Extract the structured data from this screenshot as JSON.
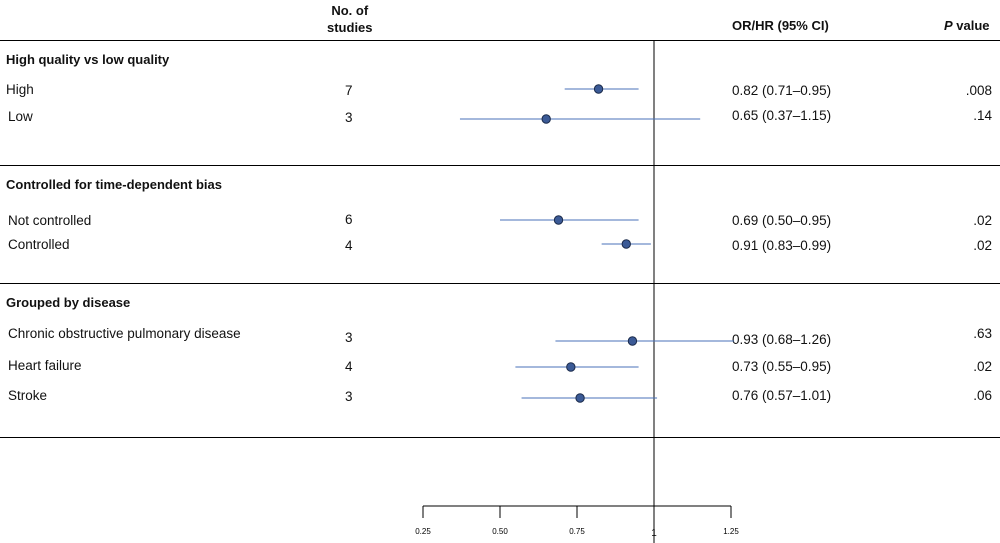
{
  "chart_data": {
    "type": "forest",
    "headers": {
      "studies_line1": "No. of",
      "studies_line2": "studies",
      "estimate": "OR/HR (95% CI)",
      "p_italic": "P",
      "p_rest": " value"
    },
    "x_axis": {
      "ticks": [
        {
          "value": 0.25,
          "label": "0.25"
        },
        {
          "value": 0.5,
          "label": "0.50"
        },
        {
          "value": 0.75,
          "label": "0.75"
        },
        {
          "value": 1.0,
          "label": "1"
        },
        {
          "value": 1.25,
          "label": "1.25"
        }
      ],
      "reference_value": 1.0,
      "range": [
        0.25,
        1.25
      ]
    },
    "groups": [
      {
        "title": "High quality vs low quality",
        "rows": [
          {
            "label": "High",
            "studies": "7",
            "estimate": 0.82,
            "lower": 0.71,
            "upper": 0.95,
            "ci_text": "0.82 (0.71–0.95)",
            "p": ".008"
          },
          {
            "label": "Low",
            "studies": "3",
            "estimate": 0.65,
            "lower": 0.37,
            "upper": 1.15,
            "ci_text": "0.65 (0.37–1.15)",
            "p": ".14"
          }
        ]
      },
      {
        "title": "Controlled for time-dependent bias",
        "rows": [
          {
            "label": "Not controlled",
            "studies": "6",
            "estimate": 0.69,
            "lower": 0.5,
            "upper": 0.95,
            "ci_text": "0.69 (0.50–0.95)",
            "p": ".02"
          },
          {
            "label": "Controlled",
            "studies": "4",
            "estimate": 0.91,
            "lower": 0.83,
            "upper": 0.99,
            "ci_text": "0.91 (0.83–0.99)",
            "p": ".02"
          }
        ]
      },
      {
        "title": "Grouped by disease",
        "rows": [
          {
            "label": "Chronic obstructive pulmonary disease",
            "studies": "3",
            "estimate": 0.93,
            "lower": 0.68,
            "upper": 1.26,
            "ci_text": "0.93 (0.68–1.26)",
            "p": ".63"
          },
          {
            "label": "Heart failure",
            "studies": "4",
            "estimate": 0.73,
            "lower": 0.55,
            "upper": 0.95,
            "ci_text": "0.73 (0.55–0.95)",
            "p": ".02"
          },
          {
            "label": "Stroke",
            "studies": "3",
            "estimate": 0.76,
            "lower": 0.57,
            "upper": 1.01,
            "ci_text": "0.76 (0.57–1.01)",
            "p": ".06"
          }
        ]
      }
    ],
    "colors": {
      "ci_line": "#4a72b8",
      "point_fill": "#3b5a96",
      "point_stroke": "#1a2a4a",
      "axis": "#000000"
    }
  }
}
